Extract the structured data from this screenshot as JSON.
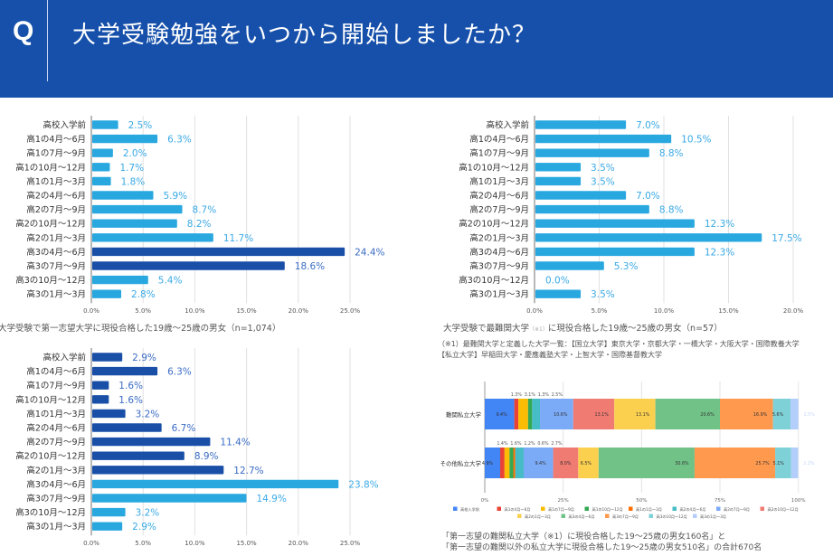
{
  "header": {
    "q_mark": "Q",
    "title": "大学受験勉強をいつから開始しましたか？",
    "background": "#1650aa"
  },
  "colors": {
    "light_bar": "#29a8e0",
    "dark_bar": "#1a4fa8",
    "light_label": "#3aa9e6",
    "dark_label": "#3b6cc4"
  },
  "categories": [
    "高校入学前",
    "高1の4月～6月",
    "高1の7月～9月",
    "高1の10月～12月",
    "高1の1月～3月",
    "高2の4月～6月",
    "高2の7月～9月",
    "高2の10月～12月",
    "高2の1月～3月",
    "高3の4月～6月",
    "高3の7月～9月",
    "高3の10月～12月",
    "高3の1月～3月"
  ],
  "chart_data": [
    {
      "type": "bar",
      "orientation": "horizontal",
      "caption": "大学受験で第一志望大学に現役合格した19歳～25歳の男女（n=1,074）",
      "values": [
        2.5,
        6.3,
        2.0,
        1.7,
        1.8,
        5.9,
        8.7,
        8.2,
        11.7,
        24.4,
        18.6,
        5.4,
        2.8
      ],
      "highlight": [
        false,
        false,
        false,
        false,
        false,
        false,
        false,
        false,
        false,
        true,
        true,
        false,
        false
      ],
      "xlim": [
        0,
        25
      ],
      "ticks": [
        "0.0%",
        "5.0%",
        "10.0%",
        "15.0%",
        "20.0%",
        "25.0%"
      ],
      "grid": true
    },
    {
      "type": "bar",
      "orientation": "horizontal",
      "caption": "大学受験で最難関大学",
      "caption_note_mark": "（※1）",
      "caption_rest": "に現役合格した19歳～25歳の男女（n=57）",
      "note_lines": [
        "（※1）最難関大学と定義した大学一覧：【国立大学】東京大学・京都大学・一橋大学・大阪大学・国際教養大学",
        "【私立大学】早稲田大学・慶應義塾大学・上智大学・国際基督教大学"
      ],
      "values": [
        7.0,
        10.5,
        8.8,
        3.5,
        3.5,
        7.0,
        8.8,
        12.3,
        17.5,
        12.3,
        5.3,
        0.0,
        3.5
      ],
      "highlight": [
        false,
        false,
        false,
        false,
        false,
        false,
        false,
        false,
        false,
        false,
        false,
        false,
        false
      ],
      "xlim": [
        0,
        20
      ],
      "ticks": [
        "0.0%",
        "5.0%",
        "10.0%",
        "15.0%",
        "20.0%"
      ],
      "grid": true
    },
    {
      "type": "bar",
      "orientation": "horizontal",
      "values": [
        2.9,
        6.3,
        1.6,
        1.6,
        3.2,
        6.7,
        11.4,
        8.9,
        12.7,
        23.8,
        14.9,
        3.2,
        2.9
      ],
      "highlight": [
        true,
        true,
        true,
        true,
        true,
        true,
        true,
        true,
        true,
        false,
        false,
        false,
        false
      ],
      "xlim": [
        0,
        25
      ],
      "ticks": [
        "0.0%",
        "5.0%",
        "10.0%",
        "15.0%",
        "20.0%",
        "25.0%"
      ],
      "grid": true
    },
    {
      "type": "bar",
      "orientation": "horizontal",
      "stacked": "percent",
      "rows": [
        "難関私立大学",
        "その他私立大学"
      ],
      "series_colors": [
        "#4285f4",
        "#ea4335",
        "#fbbc04",
        "#34a853",
        "#ff6d01",
        "#46bdc6",
        "#7baaf7",
        "#f07b72",
        "#fcd04f",
        "#71c287",
        "#ff994d",
        "#7ed1d7",
        "#b3cefb"
      ],
      "values": [
        [
          9.4,
          1.3,
          3.1,
          1.3,
          0.0,
          2.5,
          10.6,
          13.1,
          13.1,
          20.6,
          16.9,
          5.6,
          2.5
        ],
        [
          4.9,
          1.4,
          1.6,
          1.2,
          0.6,
          2.7,
          9.4,
          8.0,
          6.5,
          30.6,
          25.7,
          5.1,
          2.2
        ]
      ],
      "value_labels": [
        [
          "9.4%",
          "1.3%",
          "3.1%",
          "1.3%",
          "",
          "2.5%",
          "10.6%",
          "13.1%",
          "13.1%",
          "20.6%",
          "16.9%",
          "5.6%",
          "2.5%"
        ],
        [
          "4.9%",
          "1.4%",
          "1.6%",
          "1.2%",
          "0.6%",
          "2.7%",
          "9.4%",
          "8.0%",
          "6.5%",
          "30.6%",
          "25.7%",
          "5.1%",
          "2.2%"
        ]
      ],
      "xlim": [
        0,
        100
      ],
      "ticks": [
        "0%",
        "25%",
        "50%",
        "75%",
        "100%"
      ],
      "legend_position": "bottom",
      "caption_lines": [
        "「第一志望の難関私立大学（※1）に現役合格した19～25歳の男女160名」と",
        "「第一志望の難関以外の私立大学に現役合格した19～25歳の男女510名」の合計670名"
      ]
    }
  ]
}
